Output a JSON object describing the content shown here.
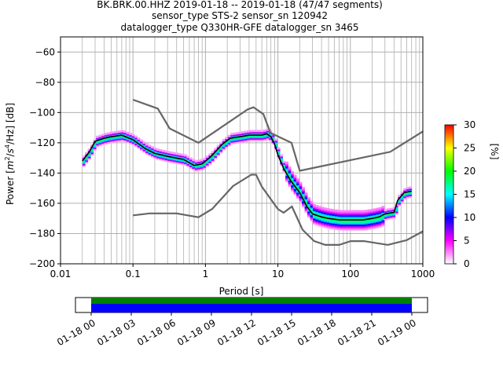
{
  "title_lines": [
    "BK.BRK.00.HHZ   2019-01-18 -- 2019-01-18  (47/47 segments)",
    "sensor_type STS-2 sensor_sn 120942",
    "datalogger_type Q330HR-GFE datalogger_sn 3465"
  ],
  "chart_data": {
    "type": "heatmap",
    "xlabel": "Period [s]",
    "ylabel_parts": [
      "Power [",
      "m",
      "2",
      "/",
      "s",
      "4",
      "/Hz] [dB]"
    ],
    "x_scale": "log",
    "xlim": [
      0.01,
      1000
    ],
    "ylim": [
      -200,
      -50
    ],
    "x_ticks": [
      {
        "v": 0.01,
        "label": "0.01"
      },
      {
        "v": 0.1,
        "label": "0.1"
      },
      {
        "v": 1,
        "label": "1"
      },
      {
        "v": 10,
        "label": "10"
      },
      {
        "v": 100,
        "label": "100"
      },
      {
        "v": 1000,
        "label": "1000"
      }
    ],
    "y_ticks": [
      -200,
      -180,
      -160,
      -140,
      -120,
      -100,
      -80,
      -60
    ],
    "grid": true,
    "colorbar": {
      "label": "[%]",
      "min": 0,
      "max": 30,
      "ticks": [
        0,
        5,
        10,
        15,
        20,
        25,
        30
      ],
      "colors": [
        "#ffffff",
        "#ff00ff",
        "#0000ff",
        "#00ffff",
        "#00ff00",
        "#ffff00",
        "#ff0000"
      ]
    },
    "nhnm": {
      "name": "NHNM",
      "x": [
        0.1,
        0.22,
        0.32,
        0.8,
        3.8,
        4.6,
        6.3,
        7.9,
        15.4,
        20,
        354.8,
        1000
      ],
      "y": [
        -91.5,
        -97.4,
        -110.5,
        -120,
        -98,
        -96.5,
        -101,
        -113.5,
        -120,
        -138.5,
        -126,
        -112.5
      ]
    },
    "nlnm": {
      "name": "NLNM",
      "x": [
        0.1,
        0.17,
        0.4,
        0.8,
        1.24,
        2.4,
        4.3,
        5,
        6,
        10,
        12,
        15.6,
        21.9,
        31.6,
        45,
        70,
        101,
        154,
        328,
        600,
        1000
      ],
      "y": [
        -168,
        -166.7,
        -166.7,
        -169.2,
        -163.7,
        -148.6,
        -141.1,
        -141.1,
        -149,
        -163.8,
        -166.2,
        -162.1,
        -177.5,
        -185,
        -187.5,
        -187.5,
        -185,
        -185,
        -187.5,
        -184.4,
        -178.5
      ]
    },
    "mode": {
      "name": "mode",
      "x": [
        0.02,
        0.025,
        0.03,
        0.04,
        0.05,
        0.07,
        0.1,
        0.15,
        0.2,
        0.3,
        0.5,
        0.7,
        0.9,
        1.2,
        1.7,
        2.2,
        3,
        4,
        5,
        6,
        7,
        8,
        9,
        10,
        12,
        15,
        20,
        25,
        30,
        40,
        50,
        70,
        100,
        150,
        200,
        250,
        300,
        400,
        450,
        550,
        700
      ],
      "y": [
        -132,
        -126,
        -119,
        -117,
        -116,
        -115,
        -118,
        -124,
        -127,
        -129,
        -131,
        -135,
        -134,
        -129,
        -121,
        -117,
        -116,
        -115,
        -115,
        -115,
        -114,
        -116,
        -121,
        -128,
        -137,
        -145,
        -153,
        -162,
        -167,
        -169,
        -170,
        -171,
        -171,
        -171,
        -170,
        -169,
        -167,
        -166,
        -158,
        -153,
        -152
      ]
    }
  },
  "time_axis": {
    "labels": [
      "01-18 00",
      "01-18 03",
      "01-18 06",
      "01-18 09",
      "01-18 12",
      "01-18 15",
      "01-18 18",
      "01-18 21",
      "01-19 00"
    ],
    "bar_colors": [
      "#008000",
      "#0000ff"
    ]
  }
}
